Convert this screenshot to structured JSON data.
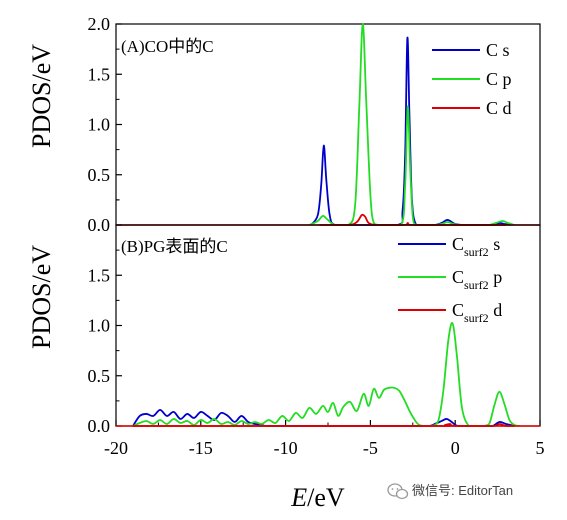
{
  "figure": {
    "xlabel_italic": "E",
    "xlabel_rest": "/eV",
    "watermark": "微信号: EditorTan"
  },
  "chart_data": [
    {
      "type": "line",
      "panel_label": "(A)CO中的C",
      "ylabel": "PDOS/eV",
      "xlim": [
        -20,
        5
      ],
      "ylim": [
        0,
        2.0
      ],
      "y_ticks": [
        "0.0",
        "0.5",
        "1.0",
        "1.5",
        "2.0"
      ],
      "x_ticks": [],
      "legend_position": "top-right",
      "series": [
        {
          "name": "C s",
          "legend_main": "C",
          "legend_sub": "",
          "legend_tail": "s",
          "color": "#0000cc",
          "x": [
            -8.5,
            -8.1,
            -7.9,
            -7.75,
            -7.6,
            -7.4,
            -7.1,
            -6.0,
            -3.4,
            -3.1,
            -2.95,
            -2.82,
            -2.7,
            -2.55,
            -2.3,
            -1.8,
            -1.2,
            -0.8,
            -0.5,
            -0.3,
            0.0,
            0.5,
            2.2,
            2.6,
            2.9,
            3.3
          ],
          "y": [
            0.0,
            0.1,
            0.4,
            0.79,
            0.45,
            0.1,
            0.0,
            0.0,
            0.0,
            0.15,
            0.7,
            1.86,
            1.1,
            0.25,
            0.0,
            0.0,
            0.0,
            0.02,
            0.05,
            0.04,
            0.01,
            0.0,
            0.0,
            0.02,
            0.01,
            0.0
          ]
        },
        {
          "name": "C p",
          "legend_main": "C",
          "legend_sub": "",
          "legend_tail": "p",
          "color": "#22dd22",
          "x": [
            -8.6,
            -8.1,
            -7.8,
            -7.5,
            -7.1,
            -6.3,
            -5.9,
            -5.65,
            -5.45,
            -5.25,
            -5.0,
            -4.8,
            -4.4,
            -3.2,
            -2.95,
            -2.8,
            -2.65,
            -2.5,
            -2.3,
            -1.8,
            -1.2,
            -0.8,
            -0.45,
            -0.1,
            0.3,
            1.5,
            2.0,
            2.4,
            2.8,
            3.1,
            3.5
          ],
          "y": [
            0.0,
            0.04,
            0.09,
            0.05,
            0.0,
            0.0,
            0.2,
            1.2,
            2.0,
            1.25,
            0.3,
            0.02,
            0.0,
            0.0,
            0.4,
            1.18,
            0.55,
            0.08,
            0.0,
            0.0,
            0.0,
            0.01,
            0.03,
            0.01,
            0.0,
            0.0,
            0.0,
            0.02,
            0.04,
            0.02,
            0.0
          ]
        },
        {
          "name": "C d",
          "legend_main": "C",
          "legend_sub": "",
          "legend_tail": "d",
          "color": "#dd0000",
          "x": [
            -8.0,
            -6.3,
            -5.8,
            -5.5,
            -5.3,
            -5.1,
            -4.6,
            -3.0,
            -2.8,
            -2.6,
            -1.0,
            2.0,
            3.0
          ],
          "y": [
            0.0,
            0.0,
            0.03,
            0.1,
            0.08,
            0.02,
            0.0,
            0.0,
            0.02,
            0.0,
            0.0,
            0.0,
            0.0
          ]
        }
      ]
    },
    {
      "type": "line",
      "panel_label": "(B)PG表面的C",
      "ylabel": "PDOS/eV",
      "xlim": [
        -20,
        5
      ],
      "ylim": [
        0,
        2.0
      ],
      "y_ticks": [
        "0.0",
        "0.5",
        "1.0",
        "1.5",
        ""
      ],
      "x_ticks": [
        "-20",
        "-15",
        "-10",
        "-5",
        "0",
        "5"
      ],
      "legend_position": "top-right",
      "series": [
        {
          "name": "Csurf2 s",
          "legend_main": "C",
          "legend_sub": "surf2",
          "legend_tail": "s",
          "color": "#0000cc",
          "x": [
            -19.0,
            -18.6,
            -18.2,
            -17.8,
            -17.4,
            -17.0,
            -16.6,
            -16.2,
            -15.8,
            -15.4,
            -15.0,
            -14.6,
            -14.2,
            -13.8,
            -13.4,
            -13.0,
            -12.6,
            -12.2,
            -11.8,
            -11.4,
            -11.0,
            -9.0,
            -7.0,
            -5.0,
            -3.0,
            -1.6,
            -1.2,
            -0.8,
            -0.5,
            -0.2,
            0.2,
            1.5,
            2.2,
            2.6,
            3.0,
            3.5
          ],
          "y": [
            0.0,
            0.1,
            0.12,
            0.1,
            0.16,
            0.1,
            0.14,
            0.07,
            0.12,
            0.08,
            0.14,
            0.1,
            0.06,
            0.13,
            0.1,
            0.04,
            0.1,
            0.04,
            0.02,
            0.01,
            0.0,
            0.0,
            0.0,
            0.0,
            0.0,
            0.0,
            0.02,
            0.05,
            0.07,
            0.04,
            0.0,
            0.0,
            0.0,
            0.04,
            0.02,
            0.0
          ]
        },
        {
          "name": "Csurf2 p",
          "legend_main": "C",
          "legend_sub": "surf2",
          "legend_tail": "p",
          "color": "#22dd22",
          "x": [
            -19.0,
            -18.6,
            -18.2,
            -17.8,
            -17.4,
            -17.0,
            -16.6,
            -16.2,
            -15.8,
            -15.4,
            -15.0,
            -14.6,
            -14.2,
            -13.8,
            -13.4,
            -13.0,
            -12.6,
            -12.2,
            -11.8,
            -11.4,
            -11.0,
            -10.6,
            -10.2,
            -9.8,
            -9.4,
            -9.0,
            -8.6,
            -8.2,
            -7.8,
            -7.5,
            -7.2,
            -6.9,
            -6.6,
            -6.2,
            -5.8,
            -5.4,
            -5.1,
            -4.8,
            -4.5,
            -4.2,
            -3.9,
            -3.6,
            -3.3,
            -3.0,
            -2.6,
            -2.2,
            -1.8,
            -1.4,
            -1.0,
            -0.7,
            -0.4,
            -0.15,
            0.1,
            0.4,
            0.8,
            1.2,
            1.6,
            2.0,
            2.3,
            2.6,
            2.9,
            3.2,
            3.5,
            3.8
          ],
          "y": [
            0.0,
            0.03,
            0.05,
            0.02,
            0.06,
            0.02,
            0.07,
            0.03,
            0.05,
            0.01,
            0.06,
            0.03,
            0.07,
            0.02,
            0.04,
            0.01,
            0.05,
            0.02,
            0.04,
            0.02,
            0.06,
            0.03,
            0.1,
            0.05,
            0.13,
            0.08,
            0.18,
            0.12,
            0.2,
            0.14,
            0.23,
            0.1,
            0.19,
            0.24,
            0.15,
            0.32,
            0.2,
            0.37,
            0.28,
            0.36,
            0.38,
            0.38,
            0.35,
            0.26,
            0.12,
            0.02,
            0.0,
            0.0,
            0.05,
            0.35,
            0.86,
            1.02,
            0.7,
            0.18,
            0.0,
            0.0,
            0.0,
            0.02,
            0.2,
            0.34,
            0.22,
            0.06,
            0.01,
            0.0
          ]
        },
        {
          "name": "Csurf2 d",
          "legend_main": "C",
          "legend_sub": "surf2",
          "legend_tail": "d",
          "color": "#dd0000",
          "x": [
            -19.0,
            -10.0,
            -1.0,
            -0.6,
            -0.3,
            0.0,
            2.2,
            2.6,
            3.0,
            3.5
          ],
          "y": [
            0.0,
            0.0,
            0.0,
            0.01,
            0.02,
            0.0,
            0.0,
            0.02,
            0.0,
            0.0
          ]
        }
      ]
    }
  ]
}
